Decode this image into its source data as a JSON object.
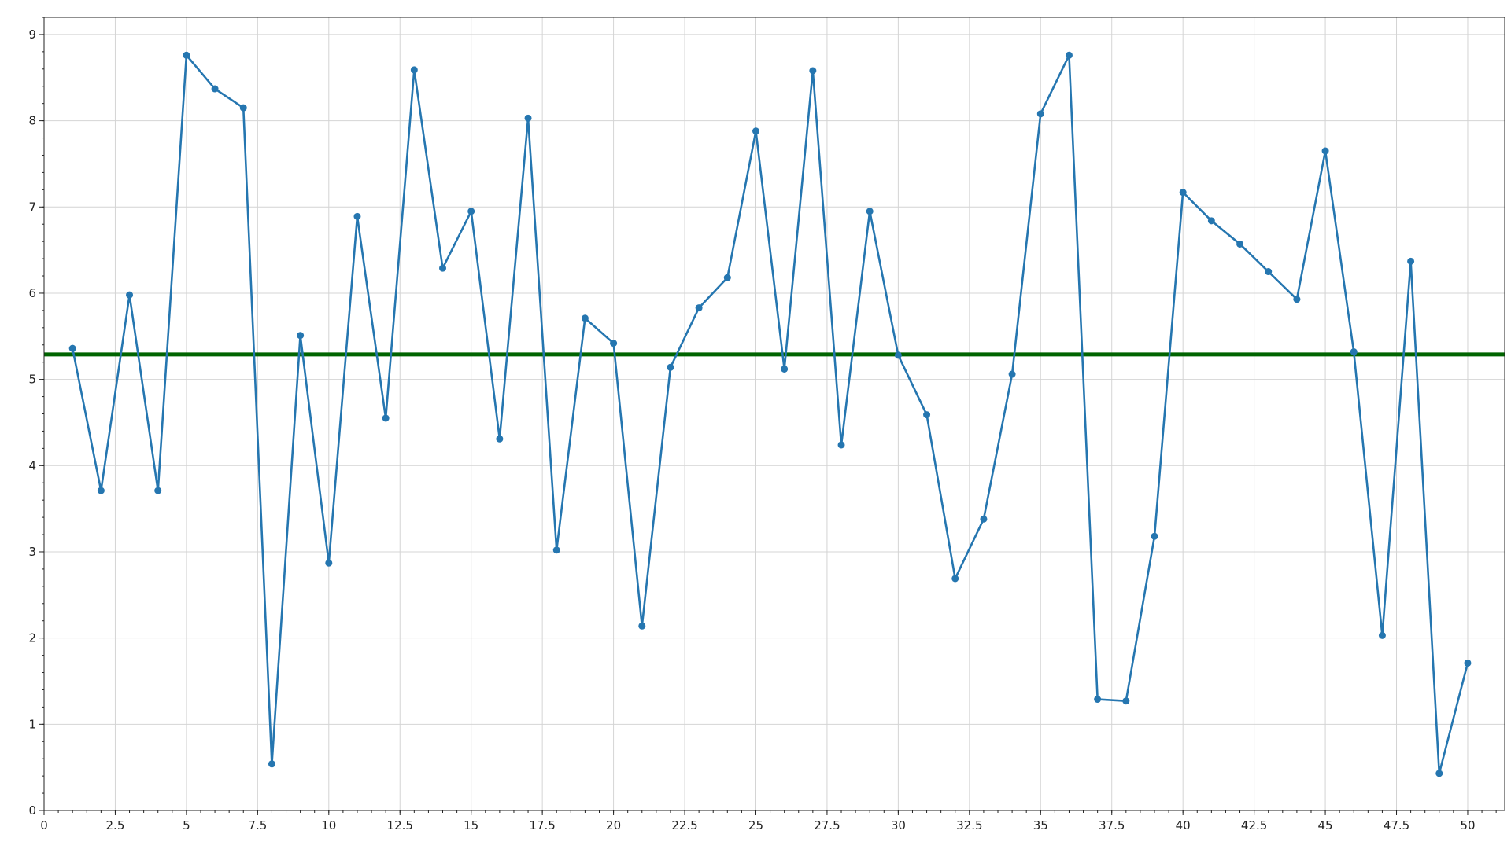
{
  "chart_data": {
    "type": "line",
    "title": "",
    "xlabel": "",
    "ylabel": "",
    "xlim": [
      0,
      51.3
    ],
    "ylim": [
      0,
      9.2
    ],
    "x_ticks": [
      0,
      2.5,
      5,
      7.5,
      10,
      12.5,
      15,
      17.5,
      20,
      22.5,
      25,
      27.5,
      30,
      32.5,
      35,
      37.5,
      40,
      42.5,
      45,
      47.5,
      50
    ],
    "x_tick_labels": [
      "0",
      "2.5",
      "5",
      "7.5",
      "10",
      "12.5",
      "15",
      "17.5",
      "20",
      "22.5",
      "25",
      "27.5",
      "30",
      "32.5",
      "35",
      "37.5",
      "40",
      "42.5",
      "45",
      "47.5",
      "50"
    ],
    "y_ticks": [
      0,
      1,
      2,
      3,
      4,
      5,
      6,
      7,
      8,
      9
    ],
    "y_tick_labels": [
      "0",
      "1",
      "2",
      "3",
      "4",
      "5",
      "6",
      "7",
      "8",
      "9"
    ],
    "grid": true,
    "series": [
      {
        "color": "#2576b0",
        "x": [
          1,
          2,
          3,
          4,
          5,
          6,
          7,
          8,
          9,
          10,
          11,
          12,
          13,
          14,
          15,
          16,
          17,
          18,
          19,
          20,
          21,
          22,
          23,
          24,
          25,
          26,
          27,
          28,
          29,
          30,
          31,
          32,
          33,
          34,
          35,
          36,
          37,
          38,
          39,
          40,
          41,
          42,
          43,
          44,
          45,
          46,
          47,
          48,
          49,
          50
        ],
        "y": [
          5.36,
          3.71,
          5.98,
          3.71,
          8.76,
          8.37,
          8.15,
          0.54,
          5.51,
          2.87,
          6.89,
          4.55,
          8.59,
          6.29,
          6.95,
          4.31,
          8.03,
          3.02,
          5.71,
          5.42,
          2.14,
          5.14,
          5.83,
          6.18,
          7.88,
          5.12,
          8.58,
          4.24,
          6.95,
          5.28,
          4.59,
          2.69,
          3.38,
          5.06,
          8.08,
          8.76,
          1.29,
          1.27,
          3.18,
          7.17,
          6.84,
          6.57,
          6.25,
          5.93,
          7.65,
          5.32,
          2.03,
          6.37,
          0.43,
          1.71
        ]
      }
    ],
    "hline": {
      "y": 5.29,
      "color": "#006400"
    }
  }
}
